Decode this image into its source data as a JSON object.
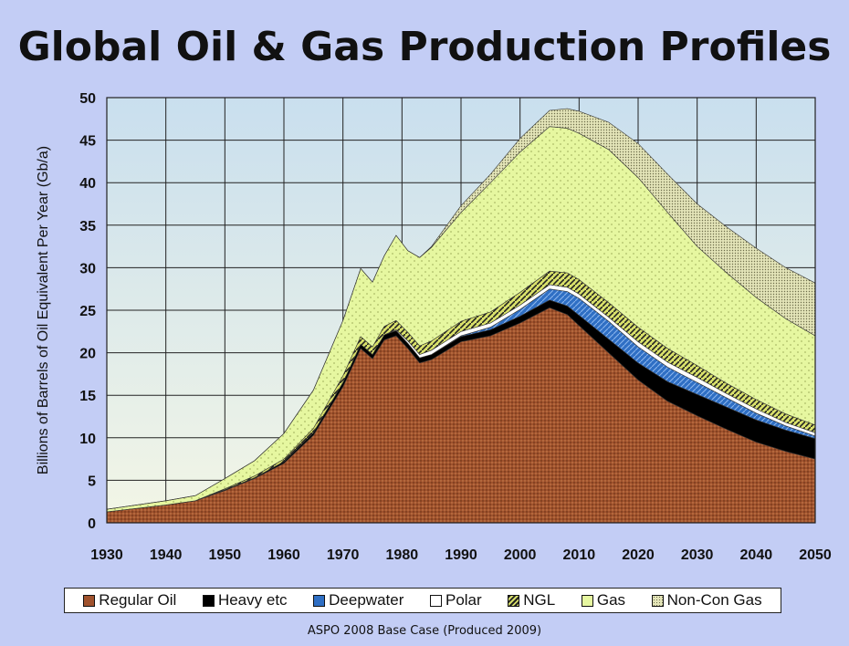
{
  "title": "Global Oil & Gas Production Profiles",
  "subtitle": "ASPO 2008 Base Case (Produced 2009)",
  "chart_data": {
    "type": "area",
    "stacked": true,
    "ylabel": "Billions of Barrels of Oil Equivalent Per Year (Gb/a)",
    "xlabel": "",
    "xlim": [
      1930,
      2050
    ],
    "ylim": [
      0,
      50
    ],
    "xticks": [
      1930,
      1940,
      1950,
      1960,
      1970,
      1980,
      1990,
      2000,
      2010,
      2020,
      2030,
      2040,
      2050
    ],
    "yticks": [
      0,
      5,
      10,
      15,
      20,
      25,
      30,
      35,
      40,
      45,
      50
    ],
    "grid": true,
    "legend_position": "bottom",
    "x": [
      1930,
      1940,
      1945,
      1950,
      1955,
      1960,
      1965,
      1970,
      1973,
      1975,
      1977,
      1979,
      1981,
      1983,
      1985,
      1990,
      1995,
      2000,
      2005,
      2008,
      2010,
      2015,
      2020,
      2025,
      2030,
      2035,
      2040,
      2045,
      2050
    ],
    "series": [
      {
        "name": "Regular Oil",
        "color": "#a0522d",
        "values": [
          1.3,
          2.1,
          2.6,
          3.8,
          5.2,
          7.0,
          10.3,
          16.0,
          20.5,
          19.3,
          21.5,
          22.0,
          20.5,
          18.8,
          19.2,
          21.3,
          22.0,
          23.5,
          25.3,
          24.5,
          23.2,
          20.0,
          16.8,
          14.3,
          12.6,
          11.0,
          9.5,
          8.4,
          7.5
        ]
      },
      {
        "name": "Heavy etc",
        "color": "#000000",
        "values": [
          0,
          0,
          0,
          0.1,
          0.1,
          0.2,
          0.3,
          0.5,
          0.5,
          0.5,
          0.6,
          0.6,
          0.6,
          0.6,
          0.6,
          0.6,
          0.7,
          0.8,
          0.9,
          1.0,
          1.2,
          1.6,
          2.0,
          2.3,
          2.5,
          2.6,
          2.6,
          2.5,
          2.4
        ]
      },
      {
        "name": "Deepwater",
        "color": "#2f6fc4",
        "values": [
          0,
          0,
          0,
          0,
          0,
          0,
          0,
          0,
          0,
          0,
          0,
          0,
          0,
          0,
          0,
          0.1,
          0.3,
          0.8,
          1.3,
          1.7,
          2.0,
          2.1,
          1.9,
          1.7,
          1.4,
          1.1,
          0.8,
          0.5,
          0.3
        ]
      },
      {
        "name": "Polar",
        "color": "#ffffff",
        "values": [
          0,
          0,
          0,
          0,
          0,
          0,
          0,
          0,
          0,
          0,
          0,
          0.1,
          0.3,
          0.4,
          0.5,
          0.5,
          0.5,
          0.5,
          0.5,
          0.5,
          0.5,
          0.5,
          0.6,
          0.6,
          0.6,
          0.5,
          0.5,
          0.4,
          0.4
        ]
      },
      {
        "name": "NGL",
        "color": "#6b7a1c",
        "values": [
          0,
          0,
          0,
          0.1,
          0.2,
          0.3,
          0.5,
          0.8,
          0.9,
          0.9,
          1.0,
          1.1,
          1.0,
          1.0,
          1.1,
          1.2,
          1.3,
          1.5,
          1.6,
          1.7,
          1.7,
          1.7,
          1.7,
          1.6,
          1.4,
          1.2,
          1.1,
          1.0,
          0.9
        ]
      },
      {
        "name": "Gas",
        "color": "#e6f7a0",
        "values": [
          0.3,
          0.5,
          0.6,
          1.2,
          1.8,
          3.0,
          4.5,
          6.5,
          8.0,
          7.6,
          8.3,
          10.0,
          9.6,
          10.4,
          11.0,
          12.8,
          15.2,
          16.5,
          17.0,
          17.0,
          17.2,
          18.0,
          17.6,
          16.0,
          14.0,
          13.0,
          12.0,
          11.2,
          10.5
        ]
      },
      {
        "name": "Non-Con Gas",
        "color": "#d4d59a",
        "values": [
          0,
          0,
          0,
          0,
          0,
          0,
          0,
          0,
          0,
          0,
          0,
          0,
          0,
          0,
          0.1,
          0.8,
          1.0,
          1.6,
          1.9,
          2.3,
          2.6,
          3.2,
          4.0,
          4.5,
          5.0,
          5.4,
          5.8,
          6.0,
          6.2
        ]
      }
    ]
  }
}
